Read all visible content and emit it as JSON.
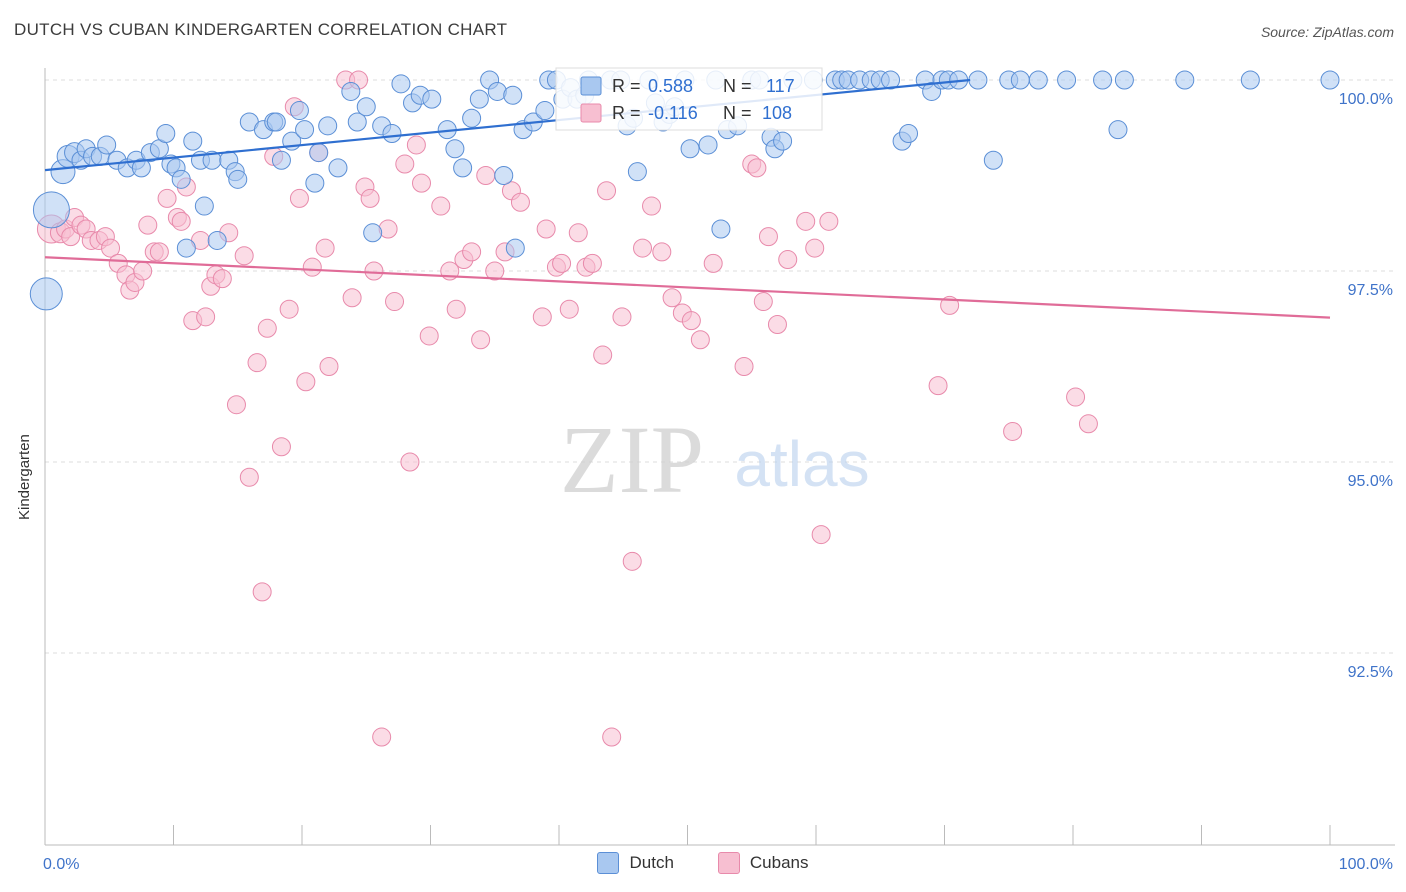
{
  "header": {
    "title": "DUTCH VS CUBAN KINDERGARTEN CORRELATION CHART",
    "source": "Source: ZipAtlas.com"
  },
  "watermark": {
    "zip": "ZIP",
    "atlas": "atlas"
  },
  "stats": {
    "dutch": {
      "r_label": "R =",
      "r_value": "0.588",
      "n_label": "N =",
      "n_value": "117"
    },
    "cubans": {
      "r_label": "R =",
      "r_value": "-0.116",
      "n_label": "N =",
      "n_value": "108"
    }
  },
  "legend": {
    "dutch": "Dutch",
    "cubans": "Cubans"
  },
  "colors": {
    "dutch_fill": "#a9c8f0",
    "dutch_stroke": "#5b8fd6",
    "dutch_line": "#2f6fd0",
    "cubans_fill": "#f7bfd1",
    "cubans_stroke": "#e88aab",
    "cubans_line": "#e06c98",
    "axis_label": "#3f73c9",
    "grid": "#dddddd"
  },
  "chart_data": {
    "type": "scatter",
    "title": "DUTCH VS CUBAN KINDERGARTEN CORRELATION CHART",
    "xlabel": "",
    "ylabel": "Kindergarten",
    "xlim": [
      0,
      100
    ],
    "ylim": [
      90.0,
      100.4
    ],
    "x_tick_labels": [
      "0.0%",
      "100.0%"
    ],
    "y_ticks": [
      {
        "value": 100.0,
        "label": "100.0%"
      },
      {
        "value": 97.5,
        "label": "97.5%"
      },
      {
        "value": 95.0,
        "label": "95.0%"
      },
      {
        "value": 92.5,
        "label": "92.5%"
      }
    ],
    "series": [
      {
        "name": "Dutch",
        "trend": {
          "x": [
            0,
            72
          ],
          "y": [
            98.82,
            100.0
          ]
        },
        "points": [
          [
            0.5,
            98.3,
            18
          ],
          [
            0.1,
            97.2,
            16
          ],
          [
            1.4,
            98.8,
            12
          ],
          [
            1.8,
            99.0,
            11
          ],
          [
            2.3,
            99.05,
            10
          ],
          [
            2.8,
            98.95,
            9
          ],
          [
            3.2,
            99.1,
            9
          ],
          [
            3.7,
            99.0,
            9
          ],
          [
            4.3,
            99.0,
            9
          ],
          [
            4.8,
            99.15,
            9
          ],
          [
            5.6,
            98.95,
            9
          ],
          [
            6.4,
            98.85,
            9
          ],
          [
            7.1,
            98.95,
            9
          ],
          [
            7.5,
            98.85,
            9
          ],
          [
            8.2,
            99.05,
            9
          ],
          [
            8.9,
            99.1,
            9
          ],
          [
            9.4,
            99.3,
            9
          ],
          [
            9.8,
            98.9,
            9
          ],
          [
            10.2,
            98.85,
            9
          ],
          [
            10.6,
            98.7,
            9
          ],
          [
            11.0,
            97.8,
            9
          ],
          [
            11.5,
            99.2,
            9
          ],
          [
            12.1,
            98.95,
            9
          ],
          [
            12.4,
            98.35,
            9
          ],
          [
            13.0,
            98.95,
            9
          ],
          [
            13.4,
            97.9,
            9
          ],
          [
            14.3,
            98.95,
            9
          ],
          [
            14.8,
            98.8,
            9
          ],
          [
            15.0,
            98.7,
            9
          ],
          [
            15.9,
            99.45,
            9
          ],
          [
            17.0,
            99.35,
            9
          ],
          [
            17.8,
            99.45,
            9
          ],
          [
            18.0,
            99.45,
            9
          ],
          [
            18.4,
            98.95,
            9
          ],
          [
            19.2,
            99.2,
            9
          ],
          [
            19.8,
            99.6,
            9
          ],
          [
            20.2,
            99.35,
            9
          ],
          [
            21.0,
            98.65,
            9
          ],
          [
            21.3,
            99.05,
            9
          ],
          [
            22.0,
            99.4,
            9
          ],
          [
            22.8,
            98.85,
            9
          ],
          [
            23.8,
            99.85,
            9
          ],
          [
            24.3,
            99.45,
            9
          ],
          [
            25.0,
            99.65,
            9
          ],
          [
            25.5,
            98.0,
            9
          ],
          [
            26.2,
            99.4,
            9
          ],
          [
            27.0,
            99.3,
            9
          ],
          [
            27.7,
            99.95,
            9
          ],
          [
            28.6,
            99.7,
            9
          ],
          [
            29.2,
            99.8,
            9
          ],
          [
            30.1,
            99.75,
            9
          ],
          [
            31.3,
            99.35,
            9
          ],
          [
            31.9,
            99.1,
            9
          ],
          [
            32.5,
            98.85,
            9
          ],
          [
            33.2,
            99.5,
            9
          ],
          [
            33.8,
            99.75,
            9
          ],
          [
            34.6,
            100.0,
            9
          ],
          [
            35.2,
            99.85,
            9
          ],
          [
            35.7,
            98.75,
            9
          ],
          [
            36.4,
            99.8,
            9
          ],
          [
            36.6,
            97.8,
            9
          ],
          [
            37.2,
            99.35,
            9
          ],
          [
            38.0,
            99.45,
            9
          ],
          [
            38.9,
            99.6,
            9
          ],
          [
            39.2,
            100.0,
            9
          ],
          [
            39.8,
            100.0,
            9
          ],
          [
            40.3,
            99.75,
            9
          ],
          [
            40.9,
            99.9,
            9
          ],
          [
            41.4,
            99.75,
            9
          ],
          [
            42.0,
            99.8,
            9
          ],
          [
            42.3,
            100.0,
            9
          ],
          [
            44.0,
            100.0,
            9
          ],
          [
            44.8,
            100.0,
            9
          ],
          [
            45.3,
            99.4,
            9
          ],
          [
            45.8,
            99.5,
            9
          ],
          [
            46.1,
            98.8,
            9
          ],
          [
            47.0,
            100.0,
            9
          ],
          [
            47.5,
            99.7,
            9
          ],
          [
            48.1,
            99.45,
            9
          ],
          [
            48.6,
            99.55,
            9
          ],
          [
            49.0,
            99.65,
            9
          ],
          [
            49.8,
            100.0,
            9
          ],
          [
            50.2,
            99.1,
            9
          ],
          [
            51.6,
            99.15,
            9
          ],
          [
            52.2,
            100.0,
            9
          ],
          [
            52.6,
            98.05,
            9
          ],
          [
            53.1,
            99.35,
            9
          ],
          [
            53.9,
            99.4,
            9
          ],
          [
            55.0,
            100.0,
            9
          ],
          [
            55.6,
            100.0,
            9
          ],
          [
            56.5,
            99.25,
            9
          ],
          [
            56.8,
            99.1,
            9
          ],
          [
            57.4,
            99.2,
            9
          ],
          [
            58.2,
            100.0,
            9
          ],
          [
            59.8,
            100.0,
            9
          ],
          [
            61.5,
            100.0,
            9
          ],
          [
            62.0,
            100.0,
            9
          ],
          [
            62.5,
            100.0,
            9
          ],
          [
            63.4,
            100.0,
            9
          ],
          [
            64.3,
            100.0,
            9
          ],
          [
            65.0,
            100.0,
            9
          ],
          [
            65.8,
            100.0,
            9
          ],
          [
            66.7,
            99.2,
            9
          ],
          [
            67.2,
            99.3,
            9
          ],
          [
            68.5,
            100.0,
            9
          ],
          [
            69.0,
            99.85,
            9
          ],
          [
            69.8,
            100.0,
            9
          ],
          [
            70.3,
            100.0,
            9
          ],
          [
            71.1,
            100.0,
            9
          ],
          [
            72.6,
            100.0,
            9
          ],
          [
            73.8,
            98.95,
            9
          ],
          [
            75.0,
            100.0,
            9
          ],
          [
            75.9,
            100.0,
            9
          ],
          [
            77.3,
            100.0,
            9
          ],
          [
            79.5,
            100.0,
            9
          ],
          [
            82.3,
            100.0,
            9
          ],
          [
            83.5,
            99.35,
            9
          ],
          [
            84.0,
            100.0,
            9
          ],
          [
            88.7,
            100.0,
            9
          ],
          [
            93.8,
            100.0,
            9
          ],
          [
            100.0,
            100.0,
            9
          ]
        ]
      },
      {
        "name": "Cubans",
        "trend": {
          "x": [
            0,
            100
          ],
          "y": [
            97.68,
            96.89
          ]
        },
        "points": [
          [
            0.5,
            98.05,
            14
          ],
          [
            1.2,
            98.0,
            10
          ],
          [
            1.6,
            98.05,
            9
          ],
          [
            2.0,
            97.95,
            9
          ],
          [
            2.3,
            98.2,
            9
          ],
          [
            2.8,
            98.1,
            9
          ],
          [
            3.2,
            98.05,
            9
          ],
          [
            3.6,
            97.9,
            9
          ],
          [
            4.2,
            97.9,
            9
          ],
          [
            4.7,
            97.95,
            9
          ],
          [
            5.1,
            97.8,
            9
          ],
          [
            5.7,
            97.6,
            9
          ],
          [
            6.3,
            97.45,
            9
          ],
          [
            6.6,
            97.25,
            9
          ],
          [
            7.0,
            97.35,
            9
          ],
          [
            7.6,
            97.5,
            9
          ],
          [
            8.0,
            98.1,
            9
          ],
          [
            8.5,
            97.75,
            9
          ],
          [
            8.9,
            97.75,
            9
          ],
          [
            9.5,
            98.45,
            9
          ],
          [
            10.3,
            98.2,
            9
          ],
          [
            10.6,
            98.15,
            9
          ],
          [
            11.0,
            98.6,
            9
          ],
          [
            11.5,
            96.85,
            9
          ],
          [
            12.1,
            97.9,
            9
          ],
          [
            12.5,
            96.9,
            9
          ],
          [
            12.9,
            97.3,
            9
          ],
          [
            13.3,
            97.45,
            9
          ],
          [
            13.8,
            97.4,
            9
          ],
          [
            14.3,
            98.0,
            9
          ],
          [
            14.9,
            95.75,
            9
          ],
          [
            15.5,
            97.7,
            9
          ],
          [
            15.9,
            94.8,
            9
          ],
          [
            16.5,
            96.3,
            9
          ],
          [
            16.9,
            93.3,
            9
          ],
          [
            17.3,
            96.75,
            9
          ],
          [
            17.8,
            99.0,
            9
          ],
          [
            18.4,
            95.2,
            9
          ],
          [
            19.0,
            97.0,
            9
          ],
          [
            19.4,
            99.65,
            9
          ],
          [
            19.8,
            98.45,
            9
          ],
          [
            20.3,
            96.05,
            9
          ],
          [
            20.8,
            97.55,
            9
          ],
          [
            21.3,
            99.05,
            9
          ],
          [
            21.8,
            97.8,
            9
          ],
          [
            22.1,
            96.25,
            9
          ],
          [
            23.4,
            100.0,
            9
          ],
          [
            23.9,
            97.15,
            9
          ],
          [
            24.4,
            100.0,
            9
          ],
          [
            24.9,
            98.6,
            9
          ],
          [
            25.3,
            98.45,
            9
          ],
          [
            25.6,
            97.5,
            9
          ],
          [
            26.2,
            91.4,
            9
          ],
          [
            26.7,
            98.05,
            9
          ],
          [
            27.2,
            97.1,
            9
          ],
          [
            28.0,
            98.9,
            9
          ],
          [
            28.4,
            95.0,
            9
          ],
          [
            28.9,
            99.15,
            9
          ],
          [
            29.3,
            98.65,
            9
          ],
          [
            29.9,
            96.65,
            9
          ],
          [
            30.8,
            98.35,
            9
          ],
          [
            31.5,
            97.5,
            9
          ],
          [
            32.0,
            97.0,
            9
          ],
          [
            32.6,
            97.65,
            9
          ],
          [
            33.2,
            97.75,
            9
          ],
          [
            33.9,
            96.6,
            9
          ],
          [
            34.3,
            98.75,
            9
          ],
          [
            35.0,
            97.5,
            9
          ],
          [
            35.8,
            97.75,
            9
          ],
          [
            36.3,
            98.55,
            9
          ],
          [
            37.0,
            98.4,
            9
          ],
          [
            38.7,
            96.9,
            9
          ],
          [
            39.0,
            98.05,
            9
          ],
          [
            39.8,
            97.55,
            9
          ],
          [
            40.2,
            97.6,
            9
          ],
          [
            40.8,
            97.0,
            9
          ],
          [
            41.5,
            98.0,
            9
          ],
          [
            42.1,
            97.55,
            9
          ],
          [
            42.6,
            97.6,
            9
          ],
          [
            43.4,
            96.4,
            9
          ],
          [
            43.7,
            98.55,
            9
          ],
          [
            44.1,
            91.4,
            9
          ],
          [
            44.9,
            96.9,
            9
          ],
          [
            45.7,
            93.7,
            9
          ],
          [
            46.5,
            97.8,
            9
          ],
          [
            47.2,
            98.35,
            9
          ],
          [
            48.0,
            97.75,
            9
          ],
          [
            48.8,
            97.15,
            9
          ],
          [
            49.6,
            96.95,
            9
          ],
          [
            50.3,
            96.85,
            9
          ],
          [
            51.0,
            96.6,
            9
          ],
          [
            52.0,
            97.6,
            9
          ],
          [
            54.4,
            96.25,
            9
          ],
          [
            55.0,
            98.9,
            9
          ],
          [
            55.4,
            98.85,
            9
          ],
          [
            55.9,
            97.1,
            9
          ],
          [
            56.3,
            97.95,
            9
          ],
          [
            57.0,
            96.8,
            9
          ],
          [
            57.8,
            97.65,
            9
          ],
          [
            59.2,
            98.15,
            9
          ],
          [
            59.9,
            97.8,
            9
          ],
          [
            60.4,
            94.05,
            9
          ],
          [
            61.0,
            98.15,
            9
          ],
          [
            69.5,
            96.0,
            9
          ],
          [
            70.4,
            97.05,
            9
          ],
          [
            75.3,
            95.4,
            9
          ],
          [
            80.2,
            95.85,
            9
          ],
          [
            81.2,
            95.5,
            9
          ]
        ]
      }
    ]
  }
}
